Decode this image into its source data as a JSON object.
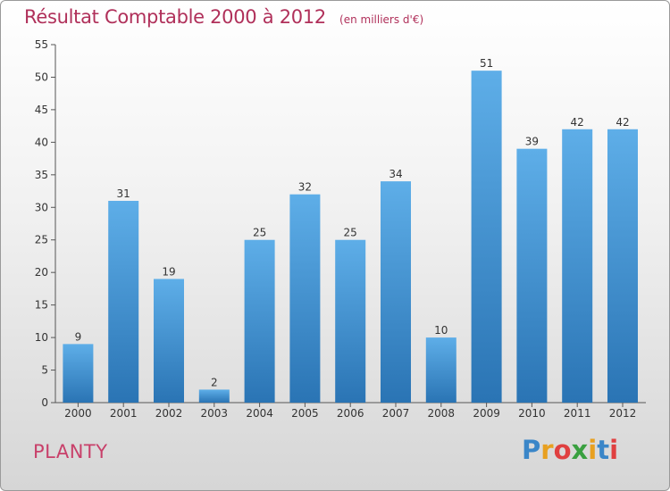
{
  "header": {
    "title": "Résultat Comptable 2000 à 2012",
    "unit": "(en milliers d'€)"
  },
  "footer": {
    "commune": "PLANTY",
    "logo_letters": [
      "P",
      "r",
      "o",
      "x",
      "i",
      "t",
      "i"
    ],
    "logo_colors": [
      "#3a86c8",
      "#e8a020",
      "#e04040",
      "#3aa040",
      "#e8a020",
      "#3a86c8",
      "#e04040"
    ]
  },
  "colors": {
    "bar_top": "#5eaee8",
    "bar_bottom": "#2a74b4",
    "title": "#b0305a"
  },
  "chart_data": {
    "type": "bar",
    "title": "Résultat Comptable 2000 à 2012",
    "subtitle": "(en milliers d'€)",
    "categories": [
      "2000",
      "2001",
      "2002",
      "2003",
      "2004",
      "2005",
      "2006",
      "2007",
      "2008",
      "2009",
      "2010",
      "2011",
      "2012"
    ],
    "values": [
      9,
      31,
      19,
      2,
      25,
      32,
      25,
      34,
      10,
      51,
      39,
      42,
      42
    ],
    "y_ticks": [
      0,
      5,
      10,
      15,
      20,
      25,
      30,
      35,
      40,
      45,
      50,
      55
    ],
    "ylim": [
      0,
      55
    ],
    "xlabel": "",
    "ylabel": "",
    "grid": false,
    "legend": "none"
  }
}
